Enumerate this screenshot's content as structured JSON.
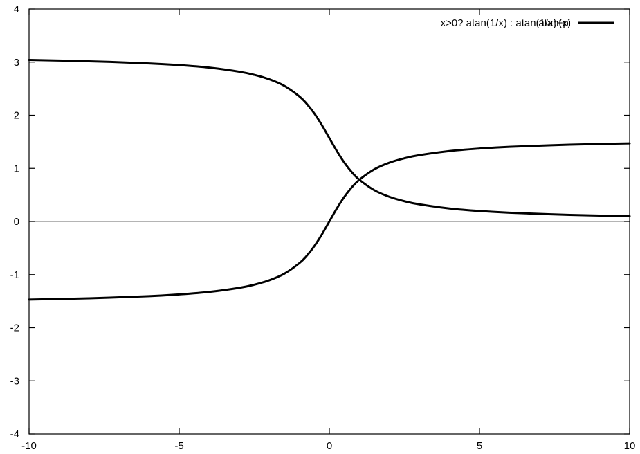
{
  "chart_data": {
    "type": "line",
    "title": "",
    "xlabel": "",
    "ylabel": "",
    "xlim": [
      -10,
      10
    ],
    "ylim": [
      -4,
      4
    ],
    "grid": false,
    "legend_position": "top-right",
    "x_ticks": [
      "-10",
      "-5",
      "0",
      "5",
      "10"
    ],
    "y_ticks": [
      "-4",
      "-3",
      "-2",
      "-1",
      "0",
      "1",
      "2",
      "3",
      "4"
    ],
    "zero_line_y": 0,
    "series": [
      {
        "name": "x>0? atan(1/x) : atan(1/x)+pi",
        "color": "#000000",
        "x": [
          -10,
          -8,
          -6,
          -5,
          -4,
          -3,
          -2.5,
          -2,
          -1.5,
          -1,
          -0.75,
          -0.5,
          -0.25,
          -0.1,
          0.1,
          0.25,
          0.5,
          0.75,
          1,
          1.5,
          2,
          2.5,
          3,
          4,
          5,
          6,
          8,
          10
        ],
        "y": [
          3.042,
          3.017,
          2.976,
          2.944,
          2.897,
          2.82,
          2.761,
          2.678,
          2.554,
          2.356,
          2.214,
          2.034,
          1.816,
          1.67,
          1.471,
          1.326,
          1.107,
          0.927,
          0.785,
          0.588,
          0.464,
          0.381,
          0.322,
          0.245,
          0.197,
          0.165,
          0.124,
          0.1
        ]
      },
      {
        "name": "atan(x)",
        "color": "#000000",
        "x": [
          -10,
          -8,
          -6,
          -5,
          -4,
          -3,
          -2.5,
          -2,
          -1.5,
          -1,
          -0.75,
          -0.5,
          -0.25,
          0,
          0.25,
          0.5,
          0.75,
          1,
          1.5,
          2,
          2.5,
          3,
          4,
          5,
          6,
          8,
          10
        ],
        "y": [
          -1.471,
          -1.446,
          -1.406,
          -1.373,
          -1.326,
          -1.249,
          -1.19,
          -1.107,
          -0.983,
          -0.785,
          -0.644,
          -0.464,
          -0.245,
          0,
          0.245,
          0.464,
          0.644,
          0.785,
          0.983,
          1.107,
          1.19,
          1.249,
          1.326,
          1.373,
          1.406,
          1.446,
          1.471
        ]
      }
    ]
  }
}
